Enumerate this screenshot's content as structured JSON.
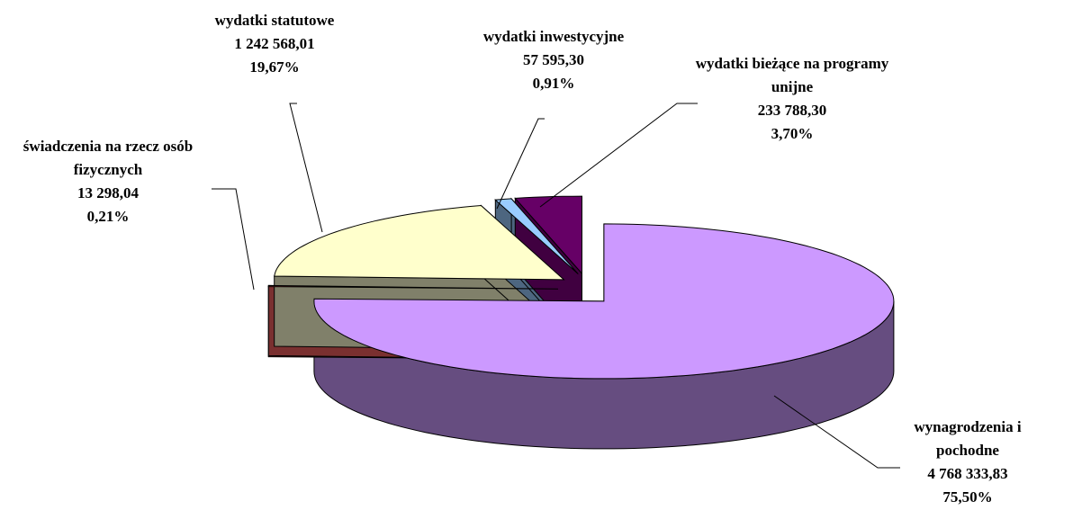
{
  "chart_data": {
    "type": "pie3d",
    "categories": [
      "wynagrodzenia i pochodne",
      "świadczenia na rzecz osób fizycznych",
      "wydatki statutowe",
      "wydatki inwestycyjne",
      "wydatki bieżące na programy unijne"
    ],
    "values": [
      75.5,
      0.21,
      19.67,
      0.91,
      3.7
    ],
    "value_labels": [
      "75,50%",
      "0,21%",
      "19,67%",
      "0,91%",
      "3,70%"
    ],
    "amounts": [
      4768333.83,
      13298.04,
      1242568.01,
      57595.3,
      233788.3
    ],
    "amount_labels": [
      "4 768 333,83",
      "13 298,04",
      "1 242 568,01",
      "57 595,30",
      "233 788,30"
    ],
    "colors": [
      "#cc99ff",
      "#993333",
      "#ffffcc",
      "#99ccff",
      "#660066"
    ],
    "side_colors": [
      "#664d80",
      "#7a3030",
      "#80806a",
      "#4d6680",
      "#400040"
    ]
  }
}
